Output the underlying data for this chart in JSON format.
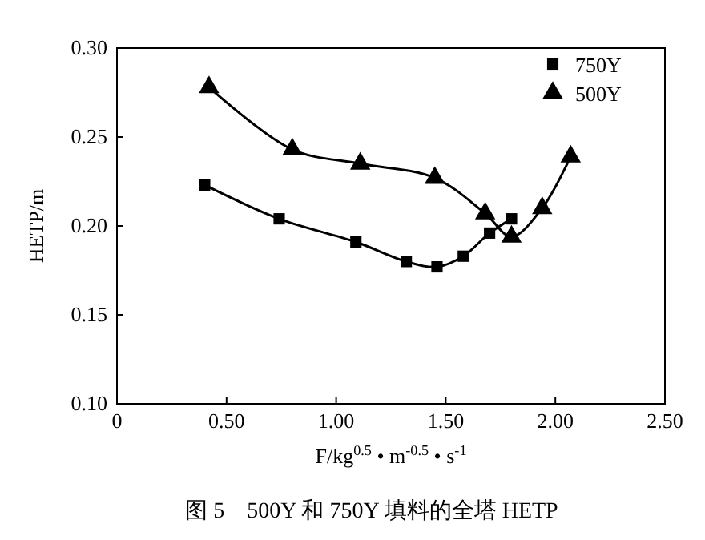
{
  "chart_data": {
    "type": "line",
    "xlabel": "F/kg$^{0.5}$ • m$^{-0.5}$ • s$^{-1}$",
    "ylabel": "HETP/m",
    "annotations": [
      "图 5　500Y 和 750Y 填料的全塔 HETP"
    ],
    "series": [
      {
        "name": "750Y",
        "color": "#000000",
        "marker": "square",
        "x": [
          0.4,
          0.74,
          1.09,
          1.32,
          1.46,
          1.58,
          1.7,
          1.8
        ],
        "values": [
          0.223,
          0.204,
          0.191,
          0.18,
          0.177,
          0.183,
          0.196,
          0.204
        ]
      },
      {
        "name": "500Y",
        "color": "#000000",
        "marker": "triangle",
        "x": [
          0.42,
          0.8,
          1.11,
          1.45,
          1.68,
          1.8,
          1.94,
          2.07
        ],
        "values": [
          0.278,
          0.243,
          0.235,
          0.227,
          0.207,
          0.194,
          0.21,
          0.239
        ]
      }
    ],
    "xlim": [
      0,
      2.5
    ],
    "xticks": [
      0,
      {
        "value": 0.5,
        "label": "0.50"
      },
      {
        "value": 1,
        "label": "1.00"
      },
      {
        "value": 1.5,
        "label": "1.50"
      },
      {
        "value": 2,
        "label": "2.00"
      },
      {
        "value": 2.5,
        "label": "2.50"
      }
    ],
    "ylim": [
      0.1,
      0.3
    ],
    "yticks": [
      {
        "value": 0.1,
        "label": "0.10"
      },
      {
        "value": 0.15,
        "label": "0.15"
      },
      {
        "value": 0.2,
        "label": "0.20"
      },
      {
        "value": 0.25,
        "label": "0.25"
      },
      {
        "value": 0.3,
        "label": "0.30"
      }
    ],
    "legend": "top right",
    "line_style": "solid"
  }
}
